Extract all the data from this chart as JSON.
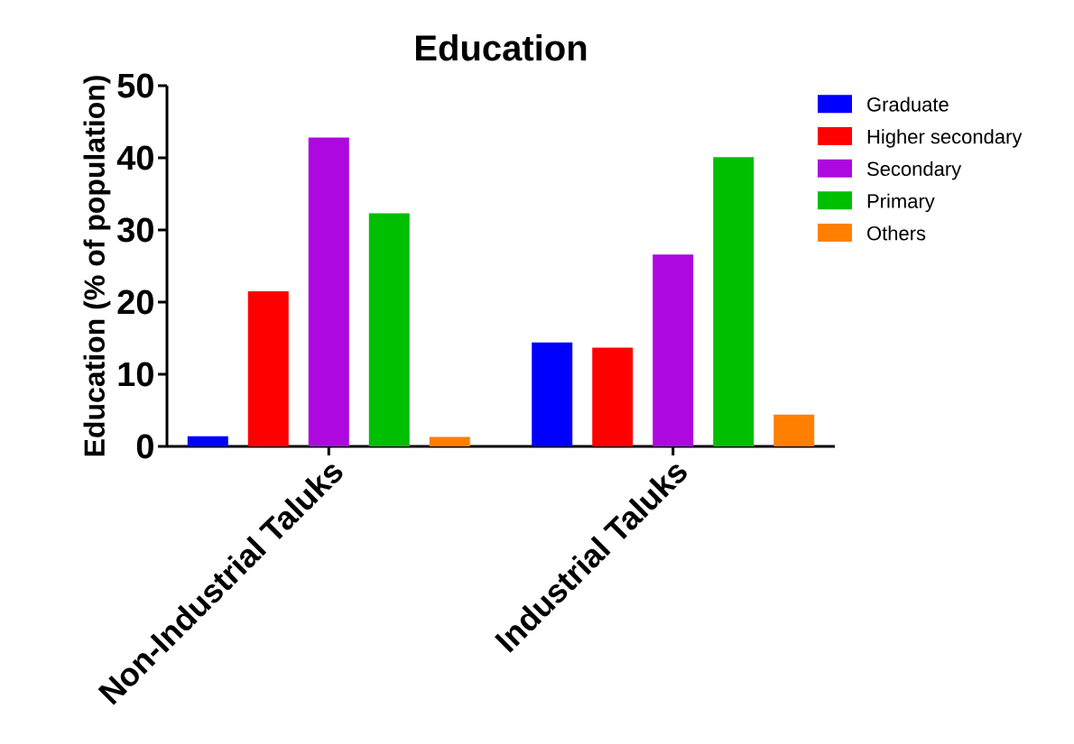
{
  "chart_data": {
    "type": "bar",
    "title": "Education",
    "ylabel": "Education (% of population)",
    "categories": [
      "Non-Industrial Taluks",
      "Industrial Taluks"
    ],
    "series": [
      {
        "name": "Graduate",
        "color": "#0000ff",
        "values": [
          1.4,
          14.4
        ]
      },
      {
        "name": "Higher secondary",
        "color": "#ff0000",
        "values": [
          21.5,
          13.7
        ]
      },
      {
        "name": "Secondary",
        "color": "#ad08e0",
        "values": [
          42.8,
          26.6
        ]
      },
      {
        "name": "Primary",
        "color": "#00bf00",
        "values": [
          32.3,
          40.1
        ]
      },
      {
        "name": "Others",
        "color": "#ff8000",
        "values": [
          1.3,
          4.4
        ]
      }
    ],
    "ylim": [
      0,
      50
    ],
    "yticks": [
      0,
      10,
      20,
      30,
      40,
      50
    ],
    "grid": false,
    "legend": "top right"
  }
}
